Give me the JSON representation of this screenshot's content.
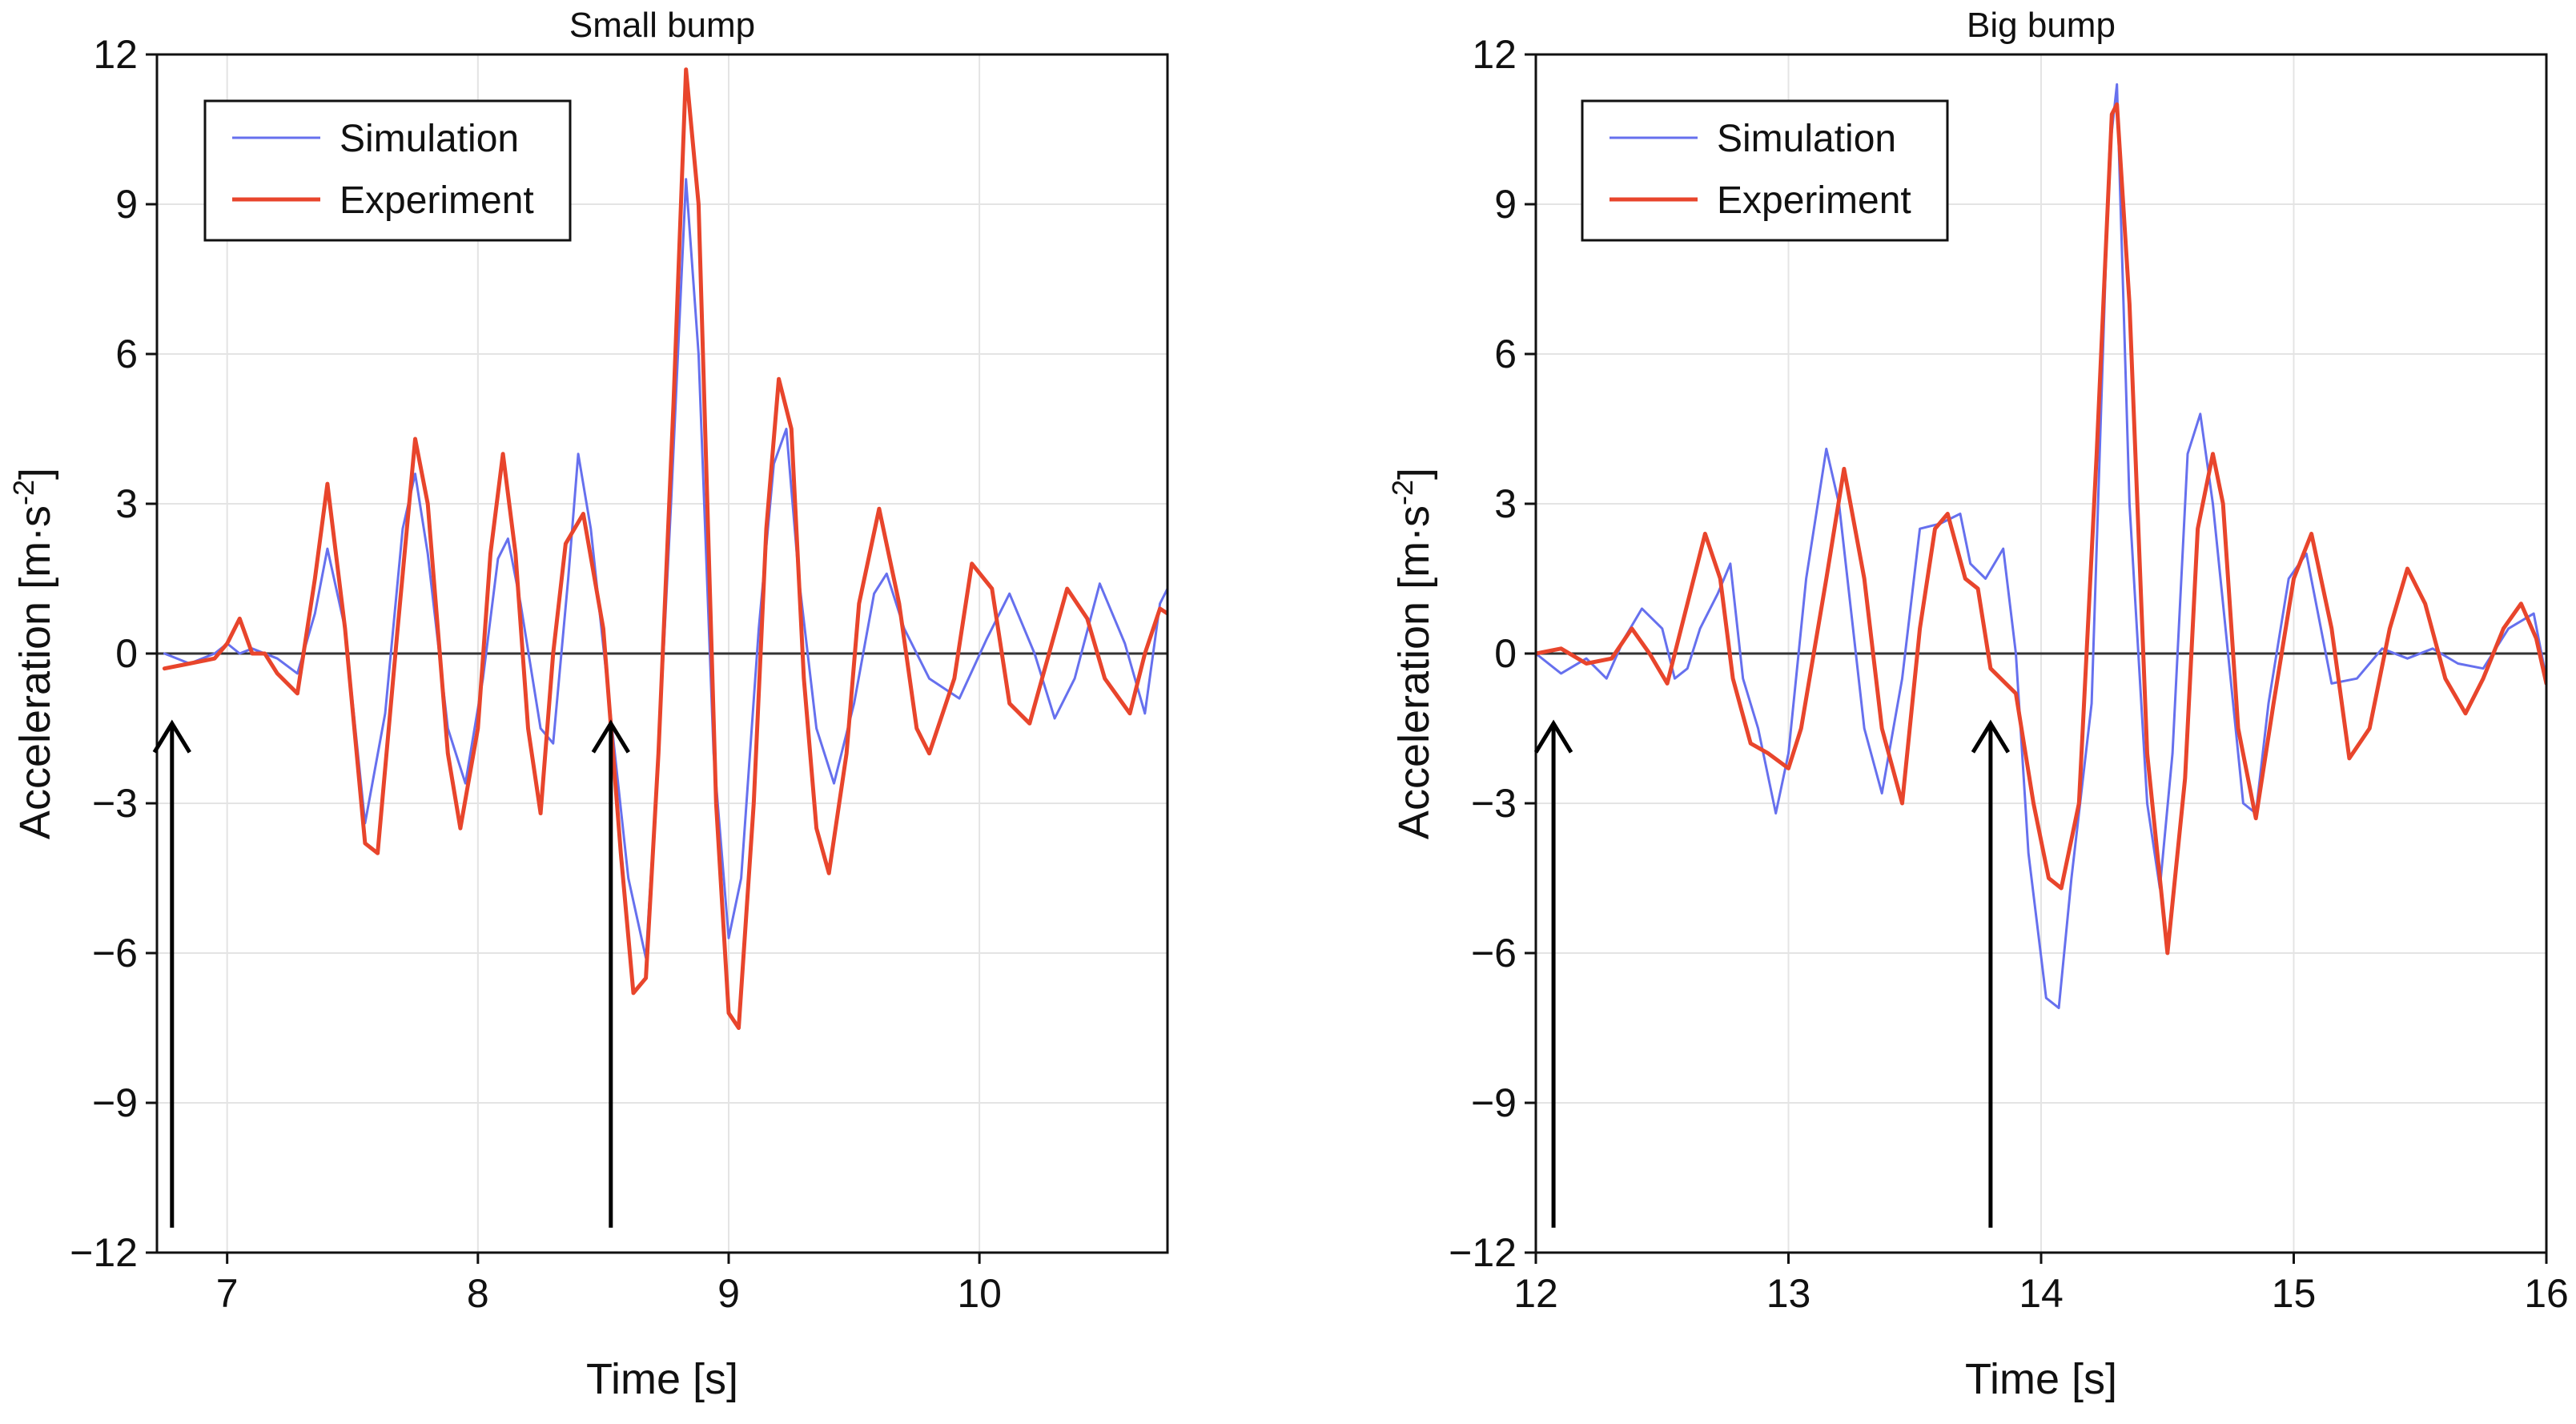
{
  "colors": {
    "simulation": "#6670EE",
    "experiment": "#E8452C",
    "axis": "#111111",
    "zero_line": "#333333",
    "grid": "#E4E4E4"
  },
  "chart_data": [
    {
      "type": "line",
      "title": "Small bump",
      "xlabel": "Time [s]",
      "ylabel": "Acceleration [m·s",
      "ylabel_sup": "-2",
      "ylabel_end": "]",
      "xlim": [
        6.72,
        10.75
      ],
      "ylim": [
        -12,
        12
      ],
      "xticks": [
        7,
        8,
        9,
        10
      ],
      "xtick_labels": [
        "7",
        "8",
        "9",
        "10"
      ],
      "yticks": [
        12,
        9,
        6,
        3,
        0,
        -3,
        -6,
        -9,
        -12
      ],
      "ytick_labels": [
        "12",
        "9",
        "6",
        "3",
        "0",
        "−3",
        "−6",
        "−9",
        "−12"
      ],
      "grid": true,
      "legend": "top-left",
      "annotations": [
        {
          "type": "arrow",
          "x": 6.78,
          "y_from": -11.5,
          "y_to": -1.4
        },
        {
          "type": "arrow",
          "x": 8.53,
          "y_from": -11.5,
          "y_to": -1.4
        }
      ],
      "series": [
        {
          "name": "Simulation",
          "color": "#6670EE",
          "x": [
            6.75,
            6.85,
            6.95,
            7.0,
            7.05,
            7.1,
            7.2,
            7.28,
            7.35,
            7.4,
            7.47,
            7.55,
            7.63,
            7.7,
            7.75,
            7.8,
            7.88,
            7.95,
            8.02,
            8.08,
            8.12,
            8.17,
            8.25,
            8.3,
            8.36,
            8.4,
            8.45,
            8.52,
            8.6,
            8.67,
            8.72,
            8.77,
            8.83,
            8.88,
            8.94,
            9.0,
            9.05,
            9.12,
            9.18,
            9.23,
            9.28,
            9.35,
            9.42,
            9.5,
            9.58,
            9.63,
            9.7,
            9.8,
            9.92,
            10.03,
            10.12,
            10.22,
            10.3,
            10.38,
            10.48,
            10.58,
            10.66,
            10.72,
            10.75
          ],
          "values": [
            0.0,
            -0.2,
            0.0,
            0.2,
            0.0,
            0.1,
            -0.1,
            -0.4,
            0.8,
            2.1,
            0.5,
            -3.4,
            -1.2,
            2.5,
            3.6,
            2.0,
            -1.5,
            -2.6,
            -0.5,
            1.9,
            2.3,
            1.0,
            -1.5,
            -1.8,
            1.5,
            4.0,
            2.5,
            -0.8,
            -4.5,
            -6.1,
            -2.0,
            3.0,
            9.5,
            6.0,
            -2.0,
            -5.7,
            -4.5,
            0.5,
            3.8,
            4.5,
            1.5,
            -1.5,
            -2.6,
            -1.0,
            1.2,
            1.6,
            0.5,
            -0.5,
            -0.9,
            0.3,
            1.2,
            0.0,
            -1.3,
            -0.5,
            1.4,
            0.2,
            -1.2,
            1.0,
            1.3
          ]
        },
        {
          "name": "Experiment",
          "color": "#E8452C",
          "x": [
            6.75,
            6.85,
            6.95,
            7.0,
            7.05,
            7.1,
            7.15,
            7.2,
            7.28,
            7.35,
            7.4,
            7.47,
            7.55,
            7.6,
            7.68,
            7.75,
            7.8,
            7.88,
            7.93,
            8.0,
            8.05,
            8.1,
            8.15,
            8.2,
            8.25,
            8.3,
            8.35,
            8.42,
            8.5,
            8.57,
            8.62,
            8.67,
            8.72,
            8.78,
            8.83,
            8.88,
            8.95,
            9.0,
            9.04,
            9.1,
            9.15,
            9.2,
            9.25,
            9.3,
            9.35,
            9.4,
            9.47,
            9.52,
            9.6,
            9.68,
            9.75,
            9.8,
            9.9,
            9.97,
            10.05,
            10.12,
            10.2,
            10.25,
            10.35,
            10.43,
            10.5,
            10.6,
            10.66,
            10.72,
            10.75
          ],
          "values": [
            -0.3,
            -0.2,
            -0.1,
            0.2,
            0.7,
            0.0,
            0.0,
            -0.4,
            -0.8,
            1.5,
            3.4,
            0.5,
            -3.8,
            -4.0,
            0.5,
            4.3,
            3.0,
            -2.0,
            -3.5,
            -1.5,
            2.0,
            4.0,
            2.0,
            -1.5,
            -3.2,
            0.0,
            2.2,
            2.8,
            0.5,
            -4.0,
            -6.8,
            -6.5,
            -2.0,
            5.0,
            11.7,
            9.0,
            -3.0,
            -7.2,
            -7.5,
            -3.0,
            2.5,
            5.5,
            4.5,
            -0.5,
            -3.5,
            -4.4,
            -2.0,
            1.0,
            2.9,
            1.0,
            -1.5,
            -2.0,
            -0.5,
            1.8,
            1.3,
            -1.0,
            -1.4,
            -0.5,
            1.3,
            0.7,
            -0.5,
            -1.2,
            0.0,
            0.9,
            0.8
          ]
        }
      ]
    },
    {
      "type": "line",
      "title": "Big bump",
      "xlabel": "Time [s]",
      "ylabel": "Acceleration [m·s",
      "ylabel_sup": "-2",
      "ylabel_end": "]",
      "xlim": [
        12,
        16
      ],
      "ylim": [
        -12,
        12
      ],
      "xticks": [
        12,
        13,
        14,
        15,
        16
      ],
      "xtick_labels": [
        "12",
        "13",
        "14",
        "15",
        "16"
      ],
      "yticks": [
        12,
        9,
        6,
        3,
        0,
        -3,
        -6,
        -9,
        -12
      ],
      "ytick_labels": [
        "12",
        "9",
        "6",
        "3",
        "0",
        "−3",
        "−6",
        "−9",
        "−12"
      ],
      "grid": true,
      "legend": "top-left",
      "annotations": [
        {
          "type": "arrow",
          "x": 12.07,
          "y_from": -11.5,
          "y_to": -1.4
        },
        {
          "type": "arrow",
          "x": 13.8,
          "y_from": -11.5,
          "y_to": -1.4
        }
      ],
      "series": [
        {
          "name": "Simulation",
          "color": "#6670EE",
          "x": [
            12.0,
            12.1,
            12.2,
            12.28,
            12.35,
            12.42,
            12.5,
            12.55,
            12.6,
            12.65,
            12.72,
            12.77,
            12.82,
            12.88,
            12.95,
            13.0,
            13.07,
            13.15,
            13.2,
            13.3,
            13.37,
            13.45,
            13.52,
            13.6,
            13.68,
            13.72,
            13.78,
            13.85,
            13.9,
            13.95,
            14.02,
            14.07,
            14.12,
            14.2,
            14.27,
            14.3,
            14.35,
            14.42,
            14.47,
            14.52,
            14.58,
            14.63,
            14.68,
            14.72,
            14.8,
            14.85,
            14.9,
            14.98,
            15.05,
            15.15,
            15.25,
            15.35,
            15.45,
            15.55,
            15.65,
            15.75,
            15.85,
            15.95,
            16.0
          ],
          "values": [
            0.0,
            -0.4,
            -0.1,
            -0.5,
            0.3,
            0.9,
            0.5,
            -0.5,
            -0.3,
            0.5,
            1.2,
            1.8,
            -0.5,
            -1.5,
            -3.2,
            -2.0,
            1.5,
            4.1,
            3.0,
            -1.5,
            -2.8,
            -0.5,
            2.5,
            2.6,
            2.8,
            1.8,
            1.5,
            2.1,
            0.0,
            -4.0,
            -6.9,
            -7.1,
            -4.5,
            -1.0,
            10.0,
            11.4,
            3.0,
            -3.0,
            -4.7,
            -2.0,
            4.0,
            4.8,
            3.0,
            1.0,
            -3.0,
            -3.2,
            -1.0,
            1.5,
            2.0,
            -0.6,
            -0.5,
            0.1,
            -0.1,
            0.1,
            -0.2,
            -0.3,
            0.5,
            0.8,
            -0.5
          ]
        },
        {
          "name": "Experiment",
          "color": "#E8452C",
          "x": [
            12.0,
            12.1,
            12.2,
            12.3,
            12.38,
            12.45,
            12.52,
            12.6,
            12.67,
            12.73,
            12.78,
            12.85,
            12.92,
            13.0,
            13.05,
            13.15,
            13.22,
            13.3,
            13.37,
            13.45,
            13.52,
            13.58,
            13.63,
            13.7,
            13.75,
            13.8,
            13.9,
            13.97,
            14.03,
            14.08,
            14.15,
            14.22,
            14.28,
            14.3,
            14.35,
            14.42,
            14.5,
            14.57,
            14.62,
            14.68,
            14.72,
            14.78,
            14.85,
            14.92,
            15.0,
            15.07,
            15.15,
            15.22,
            15.3,
            15.38,
            15.45,
            15.52,
            15.6,
            15.68,
            15.75,
            15.83,
            15.9,
            15.96,
            16.0
          ],
          "values": [
            0.0,
            0.1,
            -0.2,
            -0.1,
            0.5,
            0.0,
            -0.6,
            1.0,
            2.4,
            1.5,
            -0.5,
            -1.8,
            -2.0,
            -2.3,
            -1.5,
            1.5,
            3.7,
            1.5,
            -1.5,
            -3.0,
            0.5,
            2.5,
            2.8,
            1.5,
            1.3,
            -0.3,
            -0.8,
            -3.0,
            -4.5,
            -4.7,
            -3.0,
            4.0,
            10.8,
            11.0,
            7.0,
            -2.0,
            -6.0,
            -2.5,
            2.5,
            4.0,
            3.0,
            -1.5,
            -3.3,
            -1.0,
            1.5,
            2.4,
            0.5,
            -2.1,
            -1.5,
            0.5,
            1.7,
            1.0,
            -0.5,
            -1.2,
            -0.5,
            0.5,
            1.0,
            0.3,
            -0.6
          ]
        }
      ]
    }
  ]
}
